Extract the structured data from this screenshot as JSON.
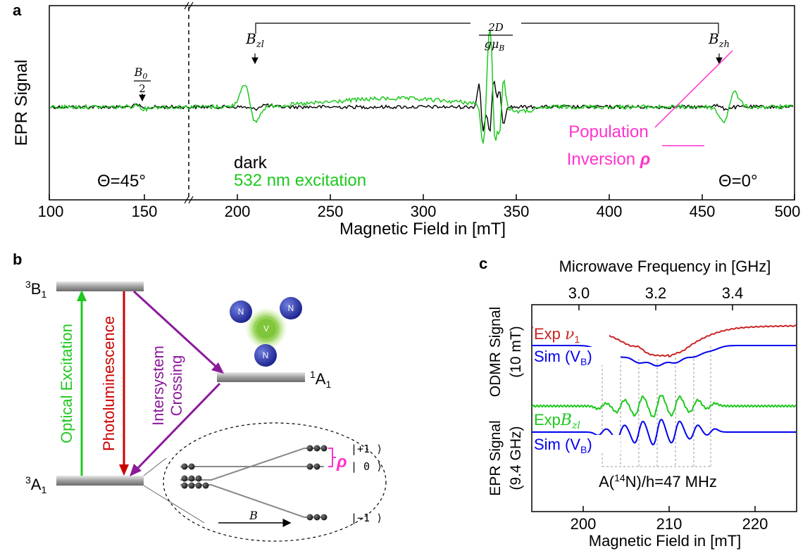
{
  "panel_a": {
    "label": "a",
    "y_label": "EPR Signal",
    "x_label": "Magnetic Field in [mT]",
    "x_ticks": [
      "100",
      "150",
      "200",
      "250",
      "300",
      "350",
      "400",
      "450",
      "500"
    ],
    "annot_b0_num": "B",
    "annot_b0_sub": "0",
    "annot_b0_den": "2",
    "annot_bzl": "B",
    "annot_bzl_sub": "zl",
    "annot_bzh": "B",
    "annot_bzh_sub": "zh",
    "annot_2d_num": "2D",
    "annot_2d_den": "gμ",
    "annot_2d_den_sub": "B",
    "legend_dark": "dark",
    "legend_green": "532 nm excitation",
    "theta_left": "Θ=45°",
    "theta_right": "Θ=0°",
    "pop_line1": "Population",
    "pop_line2": "Inversion ",
    "pop_rho": "ρ"
  },
  "panel_b": {
    "label": "b",
    "level_3b1": "3",
    "level_3b1_b": "B",
    "level_3b1_sub": "1",
    "level_1a1": "1",
    "level_1a1_b": "A",
    "level_1a1_sub": "1",
    "level_3a1": "3",
    "level_3a1_b": "A",
    "level_3a1_sub": "1",
    "optical_excitation": "Optical Excitation",
    "photoluminescence": "Photoluminescence",
    "isc_line1": "Intersystem",
    "isc_line2": "Crossing",
    "atom_n": "N",
    "atom_v": "V",
    "ket_plus": "|+1 ⟩",
    "ket_zero": "| 0 ⟩",
    "ket_minus": "|−1 ⟩",
    "rho": "ρ",
    "b_field": "B"
  },
  "panel_c": {
    "label": "c",
    "top_axis_label": "Microwave Frequency in [GHz]",
    "top_ticks": [
      "3.0",
      "3.2",
      "3.4"
    ],
    "bottom_axis_label": "Magnetic Field in [mT]",
    "bottom_ticks": [
      "200",
      "210",
      "220"
    ],
    "y_label_odmr_1": "ODMR Signal",
    "y_label_odmr_2": "(10 mT)",
    "y_label_epr_1": "EPR Signal",
    "y_label_epr_2": "(9.4 GHz)",
    "exp_v1": "Exp ",
    "exp_v1_sym": "ν",
    "exp_v1_sub": "1",
    "sim_vb_1": "Sim (V",
    "sim_vb_1_sub": "B",
    "sim_vb_1_end": ")",
    "exp_bzl": "Exp",
    "exp_bzl_sym": "B",
    "exp_bzl_sub": "zl",
    "sim_vb_2": "Sim (V",
    "sim_vb_2_sub": "B",
    "sim_vb_2_end": ")",
    "hyperfine": "A(",
    "hyperfine_sup": "14",
    "hyperfine_end": "N)/h=47 MHz"
  },
  "colors": {
    "green": "#1ec81e",
    "black": "#000000",
    "magenta": "#ff33cc",
    "red": "#cc0000",
    "purple": "#8b1a9b",
    "blue": "#0000ee",
    "exp_red": "#cc2222"
  }
}
